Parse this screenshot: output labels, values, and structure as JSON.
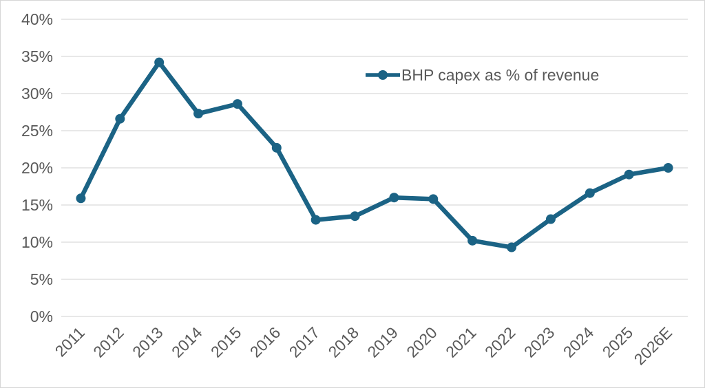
{
  "chart_data": {
    "type": "line",
    "title": "",
    "legend_position": "inside-top-center",
    "grid": "horizontal",
    "categories": [
      "2011",
      "2012",
      "2013",
      "2014",
      "2015",
      "2016",
      "2017",
      "2018",
      "2019",
      "2020",
      "2021",
      "2022",
      "2023",
      "2024",
      "2025",
      "2026E"
    ],
    "series": [
      {
        "name": "BHP capex as % of revenue",
        "values": [
          15.9,
          26.6,
          34.2,
          27.3,
          28.6,
          22.7,
          13.0,
          13.5,
          16.0,
          15.8,
          10.2,
          9.3,
          13.1,
          16.6,
          19.1,
          20.0
        ]
      }
    ],
    "xlabel": "",
    "ylabel": "",
    "ylim": [
      0,
      40
    ],
    "yticks": {
      "values": [
        0,
        5,
        10,
        15,
        20,
        25,
        30,
        35,
        40
      ],
      "labels": [
        "0%",
        "5%",
        "10%",
        "15%",
        "20%",
        "25%",
        "30%",
        "35%",
        "40%"
      ]
    },
    "colors": {
      "line": "#1B6385",
      "axis_text": "#595959",
      "gridline": "#D9D9D9",
      "border": "#D6D6D6",
      "background": "#FFFFFF"
    }
  }
}
